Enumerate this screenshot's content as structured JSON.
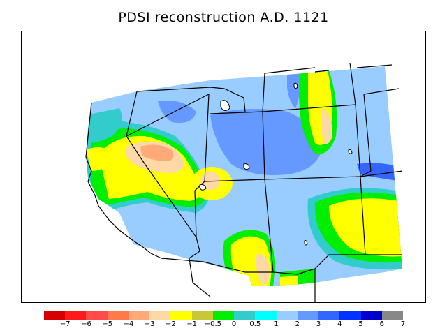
{
  "title": "PDSI reconstruction A.D. 1121",
  "legend": {
    "colors": [
      "#d60000",
      "#ff1a1a",
      "#ff4a4a",
      "#ff7a4a",
      "#ffaa78",
      "#ffd8a8",
      "#ffff00",
      "#c8c836",
      "#00ee00",
      "#33cccc",
      "#00ffff",
      "#99ccff",
      "#6699ff",
      "#3366ff",
      "#0033ff",
      "#0000cc",
      "#888888"
    ],
    "tick_labels": [
      "−7",
      "−6",
      "−5",
      "−4",
      "−3",
      "−2",
      "−1",
      "−0.5",
      "0",
      "0.5",
      "1",
      "2",
      "3",
      "4",
      "5",
      "6",
      "7"
    ]
  }
}
